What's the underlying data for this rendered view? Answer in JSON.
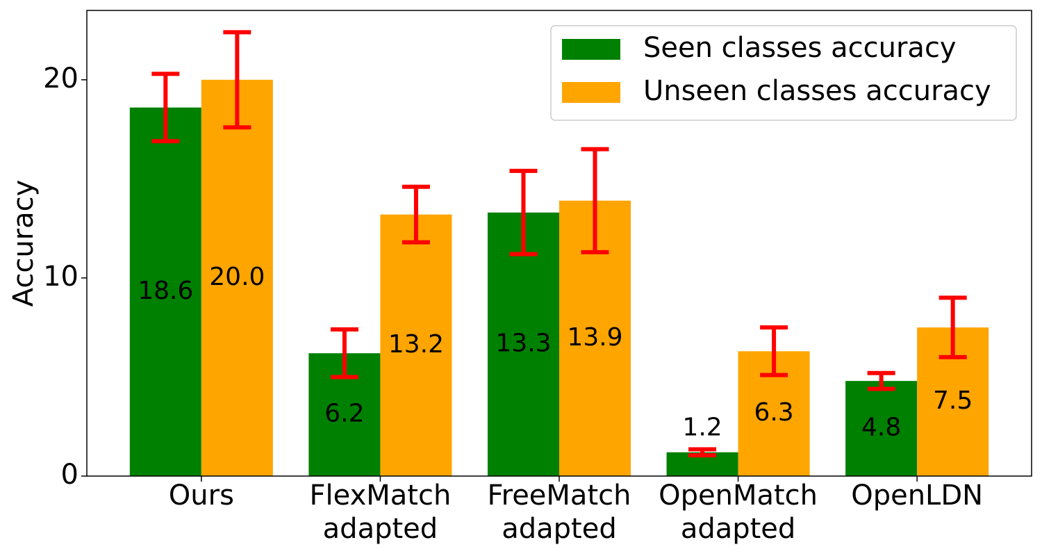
{
  "chart_data": {
    "type": "bar",
    "ylabel": "Accuracy",
    "categories": [
      "Ours",
      "FlexMatch\nadapted",
      "FreeMatch\nadapted",
      "OpenMatch\nadapted",
      "OpenLDN"
    ],
    "series": [
      {
        "name": "Seen classes accuracy",
        "color": "#008000",
        "values": [
          18.6,
          6.2,
          13.3,
          1.2,
          4.8
        ],
        "errors": [
          1.7,
          1.2,
          2.1,
          0.15,
          0.4
        ]
      },
      {
        "name": "Unseen classes accuracy",
        "color": "#ffa500",
        "values": [
          20.0,
          13.2,
          13.9,
          6.3,
          7.5
        ],
        "value_labels": [
          "20.0",
          "13.2",
          "13.9",
          "6.3",
          "7.5"
        ],
        "errors": [
          2.4,
          1.4,
          2.6,
          1.2,
          1.5
        ]
      }
    ],
    "error_color": "#ff0000",
    "ylim": [
      0,
      23.5
    ],
    "yticks": [
      0,
      10,
      20
    ],
    "legend": "upper right"
  }
}
